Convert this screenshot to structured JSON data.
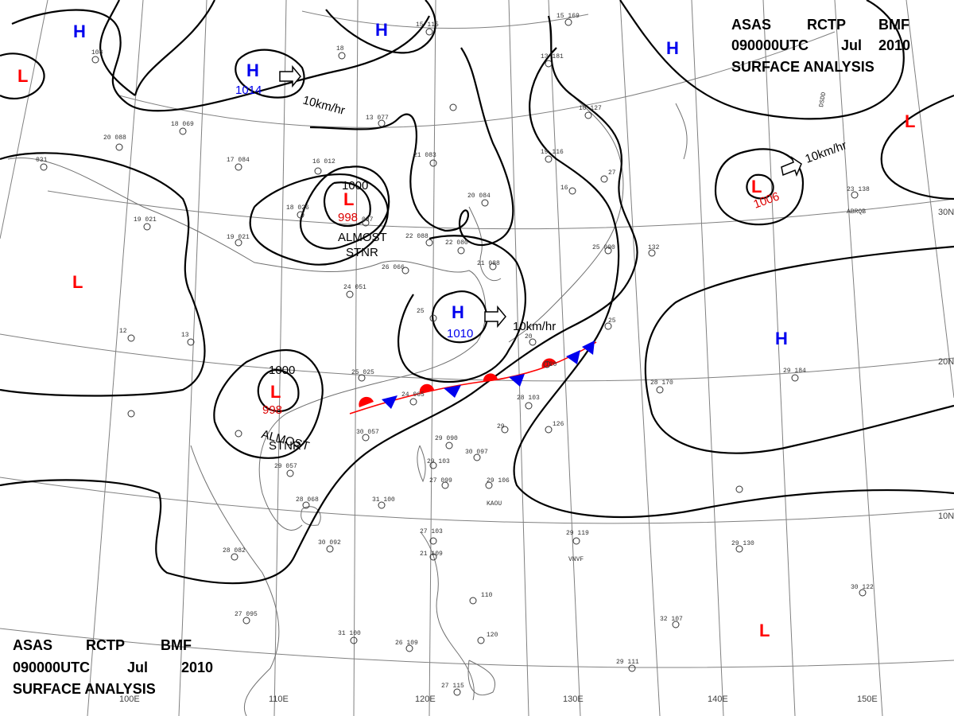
{
  "header": {
    "line1": [
      "ASAS",
      "RCTP",
      "BMF"
    ],
    "line2": [
      "090000UTC",
      "Jul",
      "2010"
    ],
    "line3": "SURFACE ANALYSIS"
  },
  "grid": {
    "longitudes": [
      "100E",
      "110E",
      "120E",
      "130E",
      "140E",
      "150E"
    ],
    "latitudes": [
      "30N",
      "20N",
      "10N"
    ]
  },
  "systems": [
    {
      "id": "H-nw",
      "letter": "H",
      "type": "high"
    },
    {
      "id": "H-mongolia",
      "letter": "H",
      "type": "high",
      "pressure": "1014"
    },
    {
      "id": "H-north",
      "letter": "H",
      "type": "high"
    },
    {
      "id": "H-ne",
      "letter": "H",
      "type": "high"
    },
    {
      "id": "L-farnw",
      "letter": "L",
      "type": "low"
    },
    {
      "id": "L-china",
      "letter": "L",
      "type": "low",
      "pressure": "998",
      "isobar": "1000"
    },
    {
      "id": "L-west",
      "letter": "L",
      "type": "low"
    },
    {
      "id": "L-indochina",
      "letter": "L",
      "type": "low",
      "pressure": "998",
      "isobar": "1000"
    },
    {
      "id": "H-eastsea",
      "letter": "H",
      "type": "high",
      "pressure": "1010"
    },
    {
      "id": "L-pacific",
      "letter": "L",
      "type": "low",
      "pressure": "1006"
    },
    {
      "id": "L-ne",
      "letter": "L",
      "type": "low"
    },
    {
      "id": "H-pacific",
      "letter": "H",
      "type": "high"
    },
    {
      "id": "L-south",
      "letter": "L",
      "type": "low"
    }
  ],
  "annotations": {
    "motion_mongolia": "10km/hr",
    "motion_eastsea": "10km/hr",
    "motion_pacific": "10km/hr",
    "stnr_china": [
      "ALMOST",
      "STNR"
    ],
    "stnr_indochina": [
      "ALMOST",
      "STNR"
    ]
  },
  "stations": [
    "KAOU",
    "VNVF",
    "ABRQB",
    "DSDD"
  ],
  "colors": {
    "high": "#0000ee",
    "low": "#ff0000",
    "lowpressure": "#dd0000",
    "front_warm": "#ff0000",
    "front_cold": "#0000ee",
    "grid": "#808080",
    "isobar": "#000000"
  }
}
